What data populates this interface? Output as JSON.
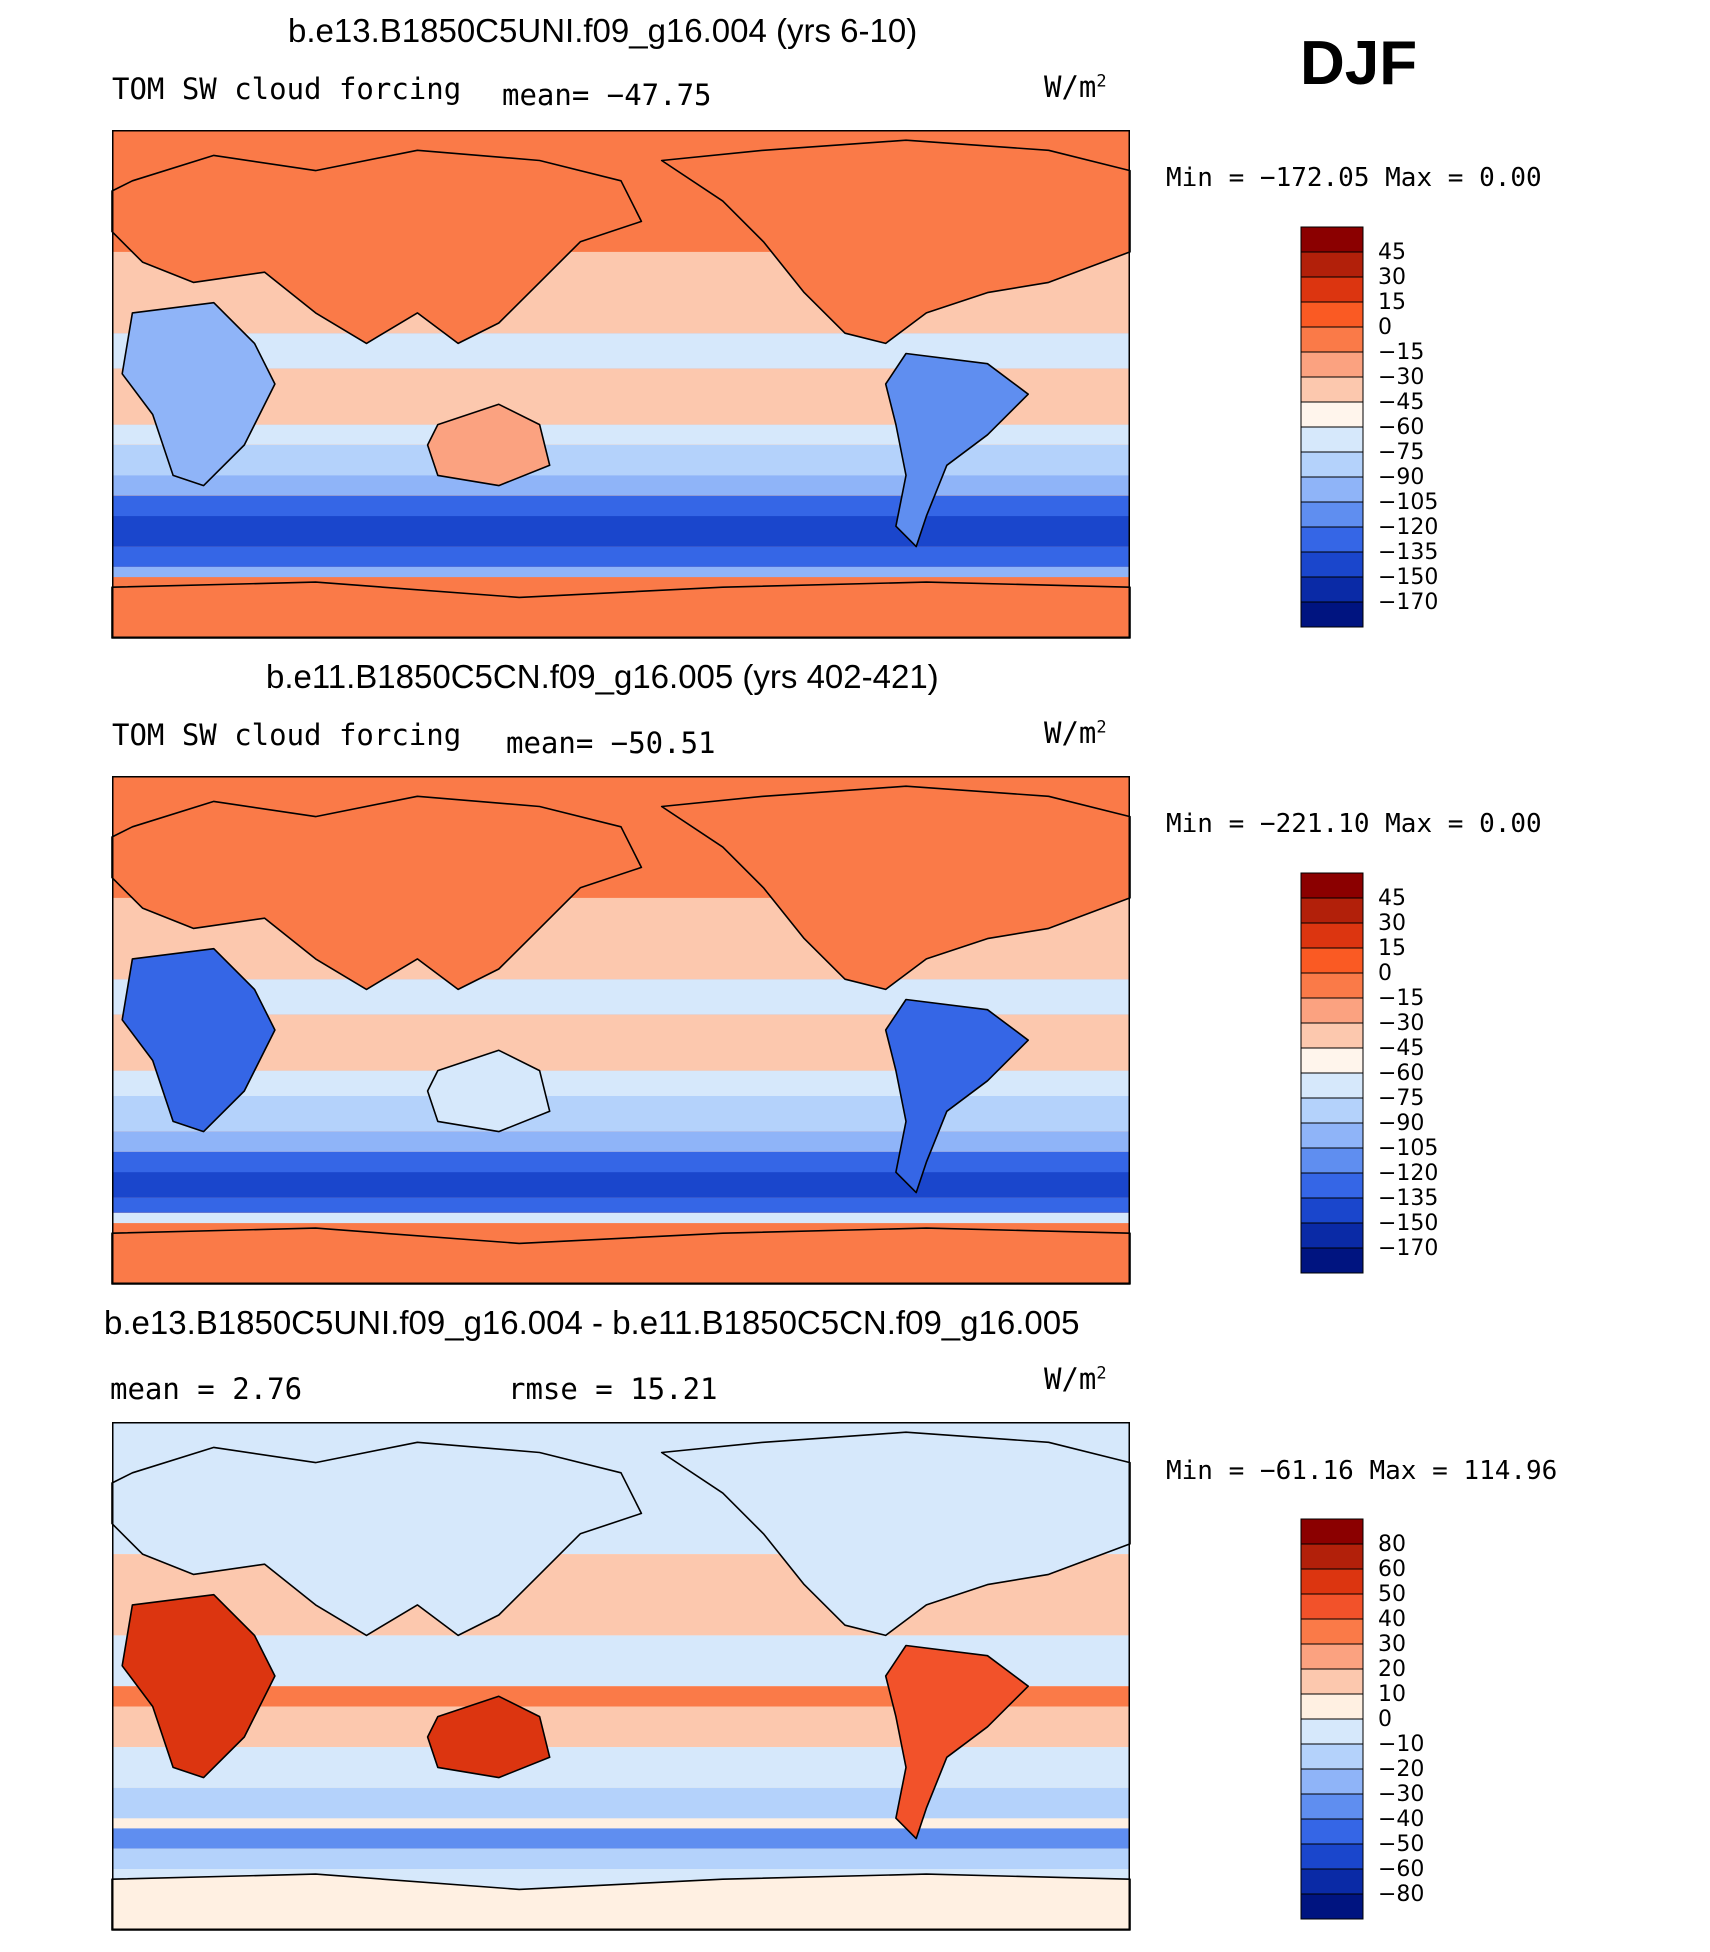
{
  "season": "DJF",
  "panels": [
    {
      "title": "b.e13.B1850C5UNI.f09_g16.004 (yrs 6-10)",
      "left_label": "TOM SW cloud forcing",
      "center_label": "mean= −47.75",
      "units": "W/m",
      "units_sup": "2",
      "minmax": "Min = −172.05 Max =   0.00"
    },
    {
      "title": "b.e11.B1850C5CN.f09_g16.005 (yrs 402-421)",
      "left_label": "TOM SW cloud forcing",
      "center_label": "mean= −50.51",
      "units": "W/m",
      "units_sup": "2",
      "minmax": "Min = −221.10 Max =   0.00"
    },
    {
      "title": "b.e13.B1850C5UNI.f09_g16.004 - b.e11.B1850C5CN.f09_g16.005",
      "left_label": "mean =    2.76",
      "center_label": "rmse =   15.21",
      "units": "W/m",
      "units_sup": "2",
      "minmax": "Min = −61.16 Max = 114.96"
    }
  ],
  "colorbars": [
    {
      "labels": [
        "45",
        "30",
        "15",
        "0",
        "−15",
        "−30",
        "−45",
        "−60",
        "−75",
        "−90",
        "−105",
        "−120",
        "−135",
        "−150",
        "−170"
      ],
      "colors": [
        "#8b0000",
        "#b2200a",
        "#dc3510",
        "#fa5a23",
        "#fa7a48",
        "#fba280",
        "#fcc8ae",
        "#fff5ec",
        "#d6e8fb",
        "#b4d2fb",
        "#8fb4f8",
        "#5f8ef0",
        "#3566e6",
        "#1a46cc",
        "#0a2aa6",
        "#001480"
      ]
    },
    {
      "labels": [
        "45",
        "30",
        "15",
        "0",
        "−15",
        "−30",
        "−45",
        "−60",
        "−75",
        "−90",
        "−105",
        "−120",
        "−135",
        "−150",
        "−170"
      ],
      "colors": [
        "#8b0000",
        "#b2200a",
        "#dc3510",
        "#fa5a23",
        "#fa7a48",
        "#fba280",
        "#fcc8ae",
        "#fff5ec",
        "#d6e8fb",
        "#b4d2fb",
        "#8fb4f8",
        "#5f8ef0",
        "#3566e6",
        "#1a46cc",
        "#0a2aa6",
        "#001480"
      ]
    },
    {
      "labels": [
        "80",
        "60",
        "50",
        "40",
        "30",
        "20",
        "10",
        "0",
        "−10",
        "−20",
        "−30",
        "−40",
        "−50",
        "−60",
        "−80"
      ],
      "colors": [
        "#8b0000",
        "#b2200a",
        "#dc3510",
        "#f2522a",
        "#fa7a48",
        "#fba280",
        "#fcc8ae",
        "#fff0e2",
        "#d6e8fb",
        "#b4d2fb",
        "#8fb4f8",
        "#5f8ef0",
        "#3566e6",
        "#1a46cc",
        "#0a2aa6",
        "#001480"
      ]
    }
  ],
  "style": {
    "panel_bg": [
      "#fa7a48",
      "#fa7a48",
      "#fff0e2"
    ],
    "ocean_colors": [
      [
        "#fcc8ae",
        "#d6e8fb",
        "#b4d2fb",
        "#8fb4f8",
        "#3566e6",
        "#1a46cc"
      ],
      [
        "#fcc8ae",
        "#d6e8fb",
        "#b4d2fb",
        "#8fb4f8",
        "#3566e6",
        "#1a46cc"
      ],
      [
        "#d6e8fb",
        "#fcc8ae",
        "#fa7a48",
        "#8fb4f8",
        "#b4d2fb",
        "#5f8ef0"
      ]
    ]
  }
}
